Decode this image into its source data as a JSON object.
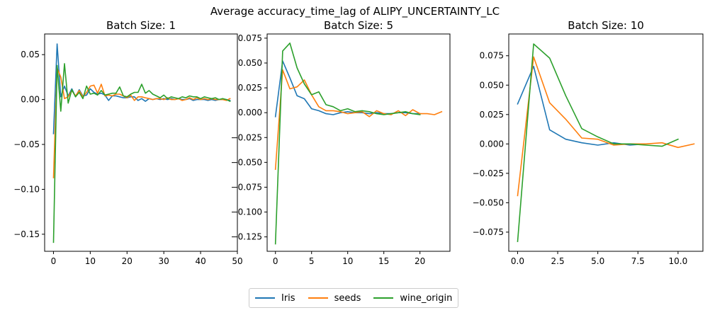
{
  "figure": {
    "title": "Average accuracy_time_lag of ALIPY_UNCERTAINTY_LC",
    "legend_position": "bottom-center"
  },
  "colors": {
    "Iris": "#1f77b4",
    "seeds": "#ff7f0e",
    "wine_origin": "#2ca02c"
  },
  "legend": [
    {
      "label": "Iris",
      "color": "#1f77b4"
    },
    {
      "label": "seeds",
      "color": "#ff7f0e"
    },
    {
      "label": "wine_origin",
      "color": "#2ca02c"
    }
  ],
  "chart_data": [
    {
      "type": "line",
      "title": "Batch Size: 1",
      "xlim": [
        -2.4,
        50
      ],
      "ylim": [
        -0.169,
        0.073
      ],
      "xticks": [
        0,
        10,
        20,
        30,
        40,
        50
      ],
      "xtick_labels": [
        "0",
        "10",
        "20",
        "30",
        "40",
        "50"
      ],
      "yticks": [
        0.05,
        0.0,
        -0.05,
        -0.1,
        -0.15
      ],
      "ytick_labels": [
        "0.05",
        "0.00",
        "−0.05",
        "−0.10",
        "−0.15"
      ],
      "grid": false,
      "series": [
        {
          "name": "Iris",
          "x": [
            0,
            1,
            2,
            3,
            4,
            5,
            6,
            7,
            8,
            9,
            10,
            11,
            12,
            13,
            14,
            15,
            16,
            17,
            18,
            19,
            20,
            21,
            22,
            23,
            24,
            25,
            26,
            27,
            28,
            29,
            30,
            31,
            32,
            33,
            34,
            35,
            36,
            37,
            38,
            39,
            40,
            41,
            42,
            43,
            44,
            45,
            46,
            47,
            48
          ],
          "y": [
            -0.038,
            0.062,
            0.003,
            0.015,
            0.004,
            0.012,
            0.003,
            0.011,
            0.004,
            0.005,
            0.012,
            0.008,
            0.006,
            0.007,
            0.005,
            -0.001,
            0.004,
            0.004,
            0.003,
            0.002,
            0.002,
            0.003,
            0.003,
            -0.001,
            0.001,
            -0.002,
            0.001,
            0.0,
            0.001,
            0.0,
            0.001,
            0.0,
            0.001,
            0.0,
            0.001,
            0.0,
            0.0,
            0.001,
            -0.001,
            0.0,
            0.0,
            0.0,
            -0.001,
            0.0,
            -0.001,
            0.0,
            0.0,
            0.0,
            -0.001
          ]
        },
        {
          "name": "seeds",
          "x": [
            0,
            1,
            2,
            3,
            4,
            5,
            6,
            7,
            8,
            9,
            10,
            11,
            12,
            13,
            14,
            15,
            16,
            17,
            18,
            19,
            20,
            21,
            22,
            23,
            24,
            25,
            26,
            27,
            28,
            29,
            30,
            31,
            32,
            33,
            34,
            35,
            36,
            37,
            38,
            39,
            40,
            41,
            42,
            43,
            44,
            45,
            46,
            47,
            48
          ],
          "y": [
            -0.087,
            0.035,
            0.025,
            0.001,
            0.003,
            0.01,
            0.004,
            0.01,
            0.003,
            0.008,
            0.015,
            0.016,
            0.007,
            0.017,
            0.004,
            0.005,
            0.004,
            0.006,
            0.006,
            0.004,
            0.002,
            0.005,
            -0.001,
            0.003,
            0.003,
            0.002,
            0.001,
            0.0,
            0.001,
            0.001,
            0.0,
            0.002,
            0.0,
            0.0,
            0.001,
            -0.001,
            0.0,
            0.002,
            0.0,
            0.002,
            0.0,
            0.001,
            0.0,
            0.001,
            0.0,
            0.0,
            0.0,
            -0.001,
            0.001
          ]
        },
        {
          "name": "wine_origin",
          "x": [
            0,
            1,
            2,
            3,
            4,
            5,
            6,
            7,
            8,
            9,
            10,
            11,
            12,
            13,
            14,
            15,
            16,
            17,
            18,
            19,
            20,
            21,
            22,
            23,
            24,
            25,
            26,
            27,
            28,
            29,
            30,
            31,
            32,
            33,
            34,
            35,
            36,
            37,
            38,
            39,
            40,
            41,
            42,
            43,
            44,
            45,
            46,
            47,
            48
          ],
          "y": [
            -0.159,
            0.038,
            -0.013,
            0.04,
            -0.004,
            0.011,
            0.003,
            0.008,
            0.001,
            0.015,
            0.006,
            0.007,
            0.005,
            0.01,
            0.005,
            0.006,
            0.007,
            0.007,
            0.014,
            0.004,
            0.003,
            0.006,
            0.008,
            0.008,
            0.017,
            0.007,
            0.01,
            0.006,
            0.004,
            0.002,
            0.005,
            0.001,
            0.003,
            0.002,
            0.001,
            0.003,
            0.002,
            0.004,
            0.003,
            0.003,
            0.001,
            0.003,
            0.002,
            0.001,
            0.002,
            0.0,
            0.001,
            0.0,
            -0.002
          ]
        }
      ]
    },
    {
      "type": "line",
      "title": "Batch Size: 5",
      "xlim": [
        -1.15,
        24.15
      ],
      "ylim": [
        -0.1395,
        0.0792
      ],
      "xticks": [
        0,
        5,
        10,
        15,
        20
      ],
      "xtick_labels": [
        "0",
        "5",
        "10",
        "15",
        "20"
      ],
      "yticks": [
        0.075,
        0.05,
        0.025,
        0.0,
        -0.025,
        -0.05,
        -0.075,
        -0.1,
        -0.125
      ],
      "ytick_labels": [
        "0.075",
        "0.050",
        "0.025",
        "0.000",
        "−0.025",
        "−0.050",
        "−0.075",
        "−0.100",
        "−0.125"
      ],
      "grid": false,
      "series": [
        {
          "name": "Iris",
          "x": [
            0,
            1,
            2,
            3,
            4,
            5,
            6,
            7,
            8,
            9,
            10,
            11,
            12,
            13,
            14,
            15,
            16,
            17,
            18,
            19,
            20
          ],
          "y": [
            -0.004,
            0.052,
            0.035,
            0.017,
            0.014,
            0.004,
            0.002,
            -0.001,
            -0.002,
            0.0,
            0.001,
            0.0,
            0.0,
            -0.001,
            0.0,
            -0.001,
            -0.001,
            0.0,
            0.0,
            -0.001,
            -0.001
          ]
        },
        {
          "name": "seeds",
          "x": [
            0,
            1,
            2,
            3,
            4,
            5,
            6,
            7,
            8,
            9,
            10,
            11,
            12,
            13,
            14,
            15,
            16,
            17,
            18,
            19,
            20,
            21,
            22,
            23
          ],
          "y": [
            -0.057,
            0.043,
            0.024,
            0.026,
            0.033,
            0.018,
            0.006,
            0.002,
            0.002,
            0.001,
            -0.001,
            0.0,
            0.001,
            -0.004,
            0.002,
            -0.001,
            -0.002,
            0.002,
            -0.003,
            0.003,
            -0.001,
            -0.001,
            -0.002,
            0.001
          ]
        },
        {
          "name": "wine_origin",
          "x": [
            0,
            1,
            2,
            3,
            4,
            5,
            6,
            7,
            8,
            9,
            10,
            11,
            12,
            13,
            14,
            15,
            16,
            17,
            18,
            19,
            20
          ],
          "y": [
            -0.132,
            0.062,
            0.07,
            0.045,
            0.029,
            0.018,
            0.021,
            0.008,
            0.006,
            0.002,
            0.004,
            0.001,
            0.002,
            0.001,
            -0.001,
            -0.002,
            -0.001,
            0.0,
            0.001,
            -0.001,
            -0.002
          ]
        }
      ]
    },
    {
      "type": "line",
      "title": "Batch Size: 10",
      "xlim": [
        -0.55,
        11.55
      ],
      "ylim": [
        -0.0913,
        0.0935
      ],
      "xticks": [
        0,
        2.5,
        5.0,
        7.5,
        10.0
      ],
      "xtick_labels": [
        "0.0",
        "2.5",
        "5.0",
        "7.5",
        "10.0"
      ],
      "yticks": [
        0.075,
        0.05,
        0.025,
        0.0,
        -0.025,
        -0.05,
        -0.075
      ],
      "ytick_labels": [
        "0.075",
        "0.050",
        "0.025",
        "0.000",
        "−0.025",
        "−0.050",
        "−0.075"
      ],
      "grid": false,
      "series": [
        {
          "name": "Iris",
          "x": [
            0,
            1,
            2,
            3,
            4,
            5,
            6,
            7,
            8
          ],
          "y": [
            0.034,
            0.066,
            0.012,
            0.004,
            0.001,
            -0.001,
            0.001,
            -0.001,
            0.0
          ]
        },
        {
          "name": "seeds",
          "x": [
            0,
            1,
            2,
            3,
            4,
            5,
            6,
            7,
            8,
            9,
            10,
            11
          ],
          "y": [
            -0.044,
            0.074,
            0.035,
            0.021,
            0.005,
            0.004,
            -0.001,
            0.0,
            0.0,
            0.001,
            -0.003,
            0.0
          ]
        },
        {
          "name": "wine_origin",
          "x": [
            0,
            1,
            2,
            3,
            4,
            5,
            6,
            7,
            8,
            9,
            10
          ],
          "y": [
            -0.083,
            0.085,
            0.073,
            0.041,
            0.013,
            0.006,
            0.0,
            0.0,
            -0.001,
            -0.002,
            0.004
          ]
        }
      ]
    }
  ]
}
